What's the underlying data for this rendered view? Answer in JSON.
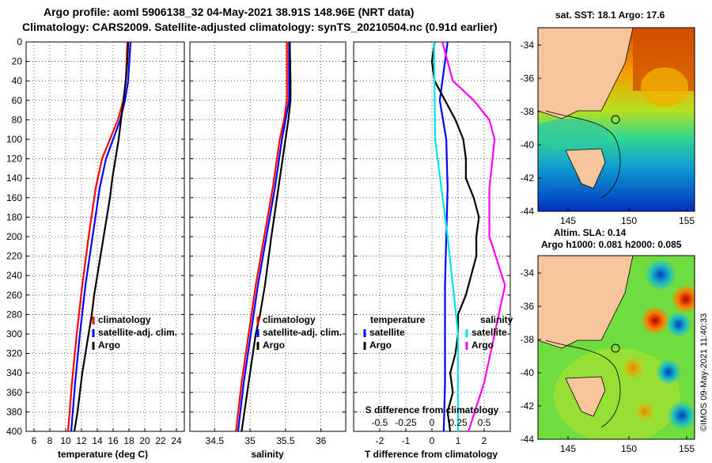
{
  "title": {
    "line1": "Argo profile: aoml 5906138_32 04-May-2021 38.91S 148.96E (NRT data)",
    "line2": "Climatology: CARS2009. Satellite-adjusted climatology: synTS_20210504.nc (0.91d earlier)"
  },
  "depth_ticks": [
    0,
    20,
    40,
    60,
    80,
    100,
    120,
    140,
    160,
    180,
    200,
    220,
    240,
    260,
    280,
    300,
    320,
    340,
    360,
    380,
    400
  ],
  "colors": {
    "climatology": "#ff0000",
    "satellite": "#0000ff",
    "argo": "#000000",
    "salinity_sat": "#00e5e5",
    "salinity_argo": "#ff00ff",
    "land": "#f7c59a"
  },
  "chart_data": [
    {
      "type": "line",
      "name": "temperature",
      "xlabel": "temperature (deg C)",
      "ylabel": "depth",
      "xlim": [
        5,
        25
      ],
      "ylim": [
        400,
        0
      ],
      "xticks": [
        6,
        8,
        10,
        12,
        14,
        16,
        18,
        20,
        22,
        24
      ],
      "legend": [
        "climatology",
        "satellite-adj. clim.",
        "Argo"
      ],
      "legend_placement": "lower-right",
      "series": [
        {
          "name": "climatology",
          "color": "#ff0000",
          "depth": [
            0,
            40,
            60,
            80,
            100,
            120,
            150,
            200,
            250,
            300,
            350,
            400
          ],
          "values": [
            17.8,
            17.6,
            17.3,
            16.6,
            15.6,
            14.6,
            13.8,
            12.9,
            12.1,
            11.4,
            10.8,
            10.3
          ]
        },
        {
          "name": "satellite-adj. clim.",
          "color": "#0000ff",
          "depth": [
            0,
            40,
            60,
            80,
            100,
            120,
            150,
            200,
            250,
            300,
            350,
            400
          ],
          "values": [
            18.2,
            17.9,
            17.5,
            16.9,
            16.0,
            15.1,
            14.3,
            13.4,
            12.5,
            11.8,
            11.2,
            10.7
          ]
        },
        {
          "name": "Argo",
          "color": "#000000",
          "depth": [
            0,
            20,
            40,
            60,
            80,
            100,
            120,
            140,
            160,
            180,
            200,
            220,
            240,
            260,
            280,
            300,
            320,
            340,
            360,
            380,
            400
          ],
          "values": [
            17.9,
            17.8,
            17.6,
            17.3,
            17.0,
            16.7,
            16.3,
            15.9,
            15.6,
            15.2,
            14.8,
            14.4,
            14.0,
            13.6,
            13.3,
            12.9,
            12.5,
            12.1,
            11.8,
            11.5,
            11.1
          ]
        }
      ]
    },
    {
      "type": "line",
      "name": "salinity",
      "xlabel": "salinity",
      "xlim": [
        34.15,
        36.35
      ],
      "ylim": [
        400,
        0
      ],
      "xticks": [
        34.5,
        35,
        35.5,
        36
      ],
      "xtick_labels": [
        "34.5",
        "35",
        "35.5",
        "36"
      ],
      "legend": [
        "climatology",
        "satellite-adj. clim.",
        "Argo"
      ],
      "legend_placement": "lower-right",
      "series": [
        {
          "name": "climatology",
          "color": "#ff0000",
          "depth": [
            0,
            60,
            80,
            100,
            150,
            200,
            250,
            300,
            350,
            400
          ],
          "values": [
            35.52,
            35.52,
            35.48,
            35.42,
            35.32,
            35.2,
            35.08,
            34.98,
            34.88,
            34.8
          ]
        },
        {
          "name": "satellite-adj. clim.",
          "color": "#0000ff",
          "depth": [
            0,
            60,
            80,
            100,
            150,
            200,
            250,
            300,
            350,
            400
          ],
          "values": [
            35.55,
            35.55,
            35.5,
            35.45,
            35.35,
            35.23,
            35.11,
            35.01,
            34.91,
            34.83
          ]
        },
        {
          "name": "Argo",
          "color": "#000000",
          "depth": [
            0,
            40,
            60,
            80,
            100,
            120,
            150,
            180,
            200,
            250,
            280,
            300,
            350,
            400
          ],
          "values": [
            35.56,
            35.57,
            35.57,
            35.54,
            35.5,
            35.46,
            35.4,
            35.34,
            35.3,
            35.21,
            35.14,
            35.08,
            34.98,
            34.88
          ]
        }
      ]
    },
    {
      "type": "line",
      "name": "difference",
      "xlabel": "T difference from climatology",
      "xlabel_top": "S difference from climatology",
      "xlim": [
        -3,
        3
      ],
      "ylim": [
        400,
        0
      ],
      "xticks": [
        -2,
        -1,
        0,
        1,
        2
      ],
      "sticks": [
        -0.5,
        -0.25,
        0,
        0.25,
        0.5
      ],
      "sticks_labels": [
        "-0.5",
        "-0.25",
        "0",
        "0.25",
        "0.5"
      ],
      "legend_left_title": "temperature",
      "legend_left": [
        "satellite",
        "Argo"
      ],
      "legend_right_title": "salinity",
      "legend_right": [
        "satellite",
        "Argo"
      ],
      "series": [
        {
          "name": "T satellite",
          "color": "#0000ff",
          "depth": [
            0,
            40,
            60,
            100,
            150,
            200,
            250,
            300,
            350,
            400
          ],
          "values": [
            0.6,
            0.4,
            0.3,
            0.55,
            0.6,
            0.55,
            0.5,
            0.5,
            0.5,
            0.45
          ]
        },
        {
          "name": "T Argo",
          "color": "#000000",
          "depth": [
            0,
            20,
            40,
            60,
            80,
            100,
            120,
            140,
            160,
            180,
            200,
            220,
            240,
            260,
            280,
            300,
            320,
            340,
            360,
            380,
            400
          ],
          "values": [
            0.1,
            0.0,
            0.1,
            0.5,
            0.9,
            1.2,
            1.3,
            1.3,
            1.6,
            1.8,
            1.7,
            1.7,
            1.5,
            1.3,
            1.0,
            1.0,
            0.9,
            0.7,
            0.8,
            0.6,
            0.7
          ]
        },
        {
          "name": "S satellite",
          "color": "#00e5e5",
          "depth": [
            0,
            100,
            200,
            300,
            400
          ],
          "values": [
            0.02,
            0.03,
            0.15,
            0.25,
            0.25
          ]
        },
        {
          "name": "S Argo",
          "color": "#ff00ff",
          "depth": [
            0,
            40,
            60,
            80,
            100,
            150,
            200,
            250,
            300,
            350,
            400
          ],
          "values": [
            0.1,
            0.2,
            0.4,
            0.55,
            0.6,
            0.55,
            0.55,
            0.7,
            0.6,
            0.5,
            0.35
          ]
        }
      ]
    }
  ],
  "maps": {
    "sst": {
      "title": "sat. SST: 18.1 Argo: 17.6",
      "xticks": [
        "145",
        "150",
        "155"
      ],
      "yticks": [
        "-34",
        "-36",
        "-38",
        "-40",
        "-42",
        "-44"
      ]
    },
    "sla": {
      "title1": "Altim. SLA: 0.14",
      "title2": "Argo h1000: 0.081 h2000: 0.085",
      "xticks": [
        "145",
        "150",
        "155"
      ],
      "yticks": [
        "-34",
        "-36",
        "-38",
        "-40",
        "-42",
        "-44"
      ]
    }
  },
  "watermark": "©IMOS 09-May-2021 11:40:33"
}
